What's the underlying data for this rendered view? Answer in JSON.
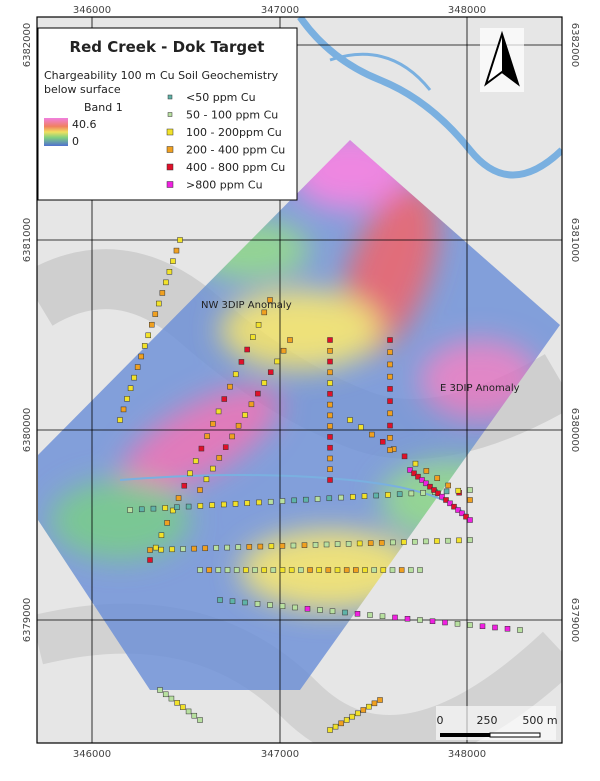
{
  "title": "Red Creek - Dok Target",
  "legend": {
    "raster": {
      "title": "Chargeability 100 m below surface",
      "band": "Band 1",
      "max": 40.6,
      "min": 0
    },
    "points": {
      "title": "Cu Soil Geochemistry",
      "items": [
        {
          "label": "<50 ppm Cu",
          "color": "#5fb3a8"
        },
        {
          "label": "50 - 100 ppm Cu",
          "color": "#b8e0a0"
        },
        {
          "label": "100 - 200ppm Cu",
          "color": "#f2e22a"
        },
        {
          "label": "200 - 400 ppm Cu",
          "color": "#f0a020"
        },
        {
          "label": "400 - 800 ppm Cu",
          "color": "#e0102a"
        },
        {
          "label": ">800 ppm Cu",
          "color": "#f020e0"
        }
      ]
    }
  },
  "grid": {
    "eastings": [
      346000,
      347000,
      348000
    ],
    "northings": [
      6382000,
      6381000,
      6380000,
      6379000
    ]
  },
  "annotations": [
    "NW 3DIP Anomaly",
    "E 3DIP Anomaly"
  ],
  "scale_bar": [
    "0",
    "250",
    "500 m"
  ]
}
